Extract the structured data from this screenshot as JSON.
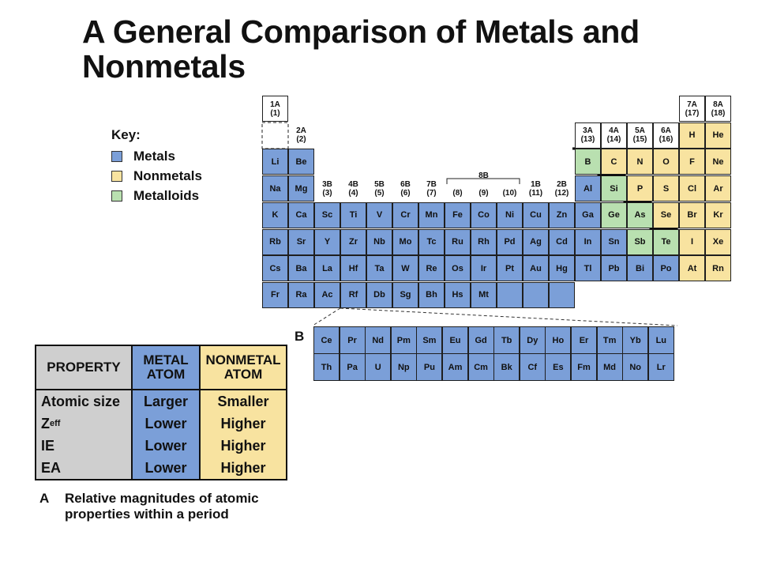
{
  "title": "A General Comparison of Metals and Nonmetals",
  "colors": {
    "metal": "#7b9fd8",
    "nonmetal": "#f8e3a0",
    "metalloid": "#b9e0b0",
    "gray": "#cfcfcf"
  },
  "key": {
    "title": "Key:",
    "items": [
      {
        "label": "Metals",
        "type": "metal"
      },
      {
        "label": "Nonmetals",
        "type": "nonmetal"
      },
      {
        "label": "Metalloids",
        "type": "metalloid"
      }
    ]
  },
  "group_labels": [
    {
      "text": "1A\n(1)",
      "col": 1,
      "row": 0
    },
    {
      "text": "2A\n(2)",
      "col": 2,
      "row": 1,
      "noborder": true
    },
    {
      "text": "3A\n(13)",
      "col": 13,
      "row": 1
    },
    {
      "text": "4A\n(14)",
      "col": 14,
      "row": 1
    },
    {
      "text": "5A\n(15)",
      "col": 15,
      "row": 1
    },
    {
      "text": "6A\n(16)",
      "col": 16,
      "row": 1
    },
    {
      "text": "7A\n(17)",
      "col": 17,
      "row": 0
    },
    {
      "text": "8A\n(18)",
      "col": 18,
      "row": 0
    },
    {
      "text": "3B\n(3)",
      "col": 3,
      "row": 3,
      "noborder": true
    },
    {
      "text": "4B\n(4)",
      "col": 4,
      "row": 3,
      "noborder": true
    },
    {
      "text": "5B\n(5)",
      "col": 5,
      "row": 3,
      "noborder": true
    },
    {
      "text": "6B\n(6)",
      "col": 6,
      "row": 3,
      "noborder": true
    },
    {
      "text": "7B\n(7)",
      "col": 7,
      "row": 3,
      "noborder": true
    },
    {
      "text": "8B",
      "col": 9,
      "row": 3,
      "noborder": true,
      "top": true
    },
    {
      "text": "(8)",
      "col": 8,
      "row": 3,
      "noborder": true,
      "bottom": true
    },
    {
      "text": "(9)",
      "col": 9,
      "row": 3,
      "noborder": true,
      "bottom": true
    },
    {
      "text": "(10)",
      "col": 10,
      "row": 3,
      "noborder": true,
      "bottom": true
    },
    {
      "text": "1B\n(11)",
      "col": 11,
      "row": 3,
      "noborder": true
    },
    {
      "text": "2B\n(12)",
      "col": 12,
      "row": 3,
      "noborder": true
    }
  ],
  "elements": [
    {
      "s": "Li",
      "c": 1,
      "r": 2,
      "t": "metal"
    },
    {
      "s": "Be",
      "c": 2,
      "r": 2,
      "t": "metal"
    },
    {
      "s": "B",
      "c": 13,
      "r": 2,
      "t": "metalloid"
    },
    {
      "s": "C",
      "c": 14,
      "r": 2,
      "t": "nonmetal"
    },
    {
      "s": "N",
      "c": 15,
      "r": 2,
      "t": "nonmetal"
    },
    {
      "s": "O",
      "c": 16,
      "r": 2,
      "t": "nonmetal"
    },
    {
      "s": "F",
      "c": 17,
      "r": 2,
      "t": "nonmetal"
    },
    {
      "s": "Ne",
      "c": 18,
      "r": 2,
      "t": "nonmetal"
    },
    {
      "s": "H",
      "c": 17,
      "r": 1,
      "t": "nonmetal"
    },
    {
      "s": "He",
      "c": 18,
      "r": 1,
      "t": "nonmetal"
    },
    {
      "s": "Na",
      "c": 1,
      "r": 3,
      "t": "metal"
    },
    {
      "s": "Mg",
      "c": 2,
      "r": 3,
      "t": "metal"
    },
    {
      "s": "Al",
      "c": 13,
      "r": 3,
      "t": "metal"
    },
    {
      "s": "Si",
      "c": 14,
      "r": 3,
      "t": "metalloid"
    },
    {
      "s": "P",
      "c": 15,
      "r": 3,
      "t": "nonmetal"
    },
    {
      "s": "S",
      "c": 16,
      "r": 3,
      "t": "nonmetal"
    },
    {
      "s": "Cl",
      "c": 17,
      "r": 3,
      "t": "nonmetal"
    },
    {
      "s": "Ar",
      "c": 18,
      "r": 3,
      "t": "nonmetal"
    },
    {
      "s": "K",
      "c": 1,
      "r": 4,
      "t": "metal"
    },
    {
      "s": "Ca",
      "c": 2,
      "r": 4,
      "t": "metal"
    },
    {
      "s": "Sc",
      "c": 3,
      "r": 4,
      "t": "metal"
    },
    {
      "s": "Ti",
      "c": 4,
      "r": 4,
      "t": "metal"
    },
    {
      "s": "V",
      "c": 5,
      "r": 4,
      "t": "metal"
    },
    {
      "s": "Cr",
      "c": 6,
      "r": 4,
      "t": "metal"
    },
    {
      "s": "Mn",
      "c": 7,
      "r": 4,
      "t": "metal"
    },
    {
      "s": "Fe",
      "c": 8,
      "r": 4,
      "t": "metal"
    },
    {
      "s": "Co",
      "c": 9,
      "r": 4,
      "t": "metal"
    },
    {
      "s": "Ni",
      "c": 10,
      "r": 4,
      "t": "metal"
    },
    {
      "s": "Cu",
      "c": 11,
      "r": 4,
      "t": "metal"
    },
    {
      "s": "Zn",
      "c": 12,
      "r": 4,
      "t": "metal"
    },
    {
      "s": "Ga",
      "c": 13,
      "r": 4,
      "t": "metal"
    },
    {
      "s": "Ge",
      "c": 14,
      "r": 4,
      "t": "metalloid"
    },
    {
      "s": "As",
      "c": 15,
      "r": 4,
      "t": "metalloid"
    },
    {
      "s": "Se",
      "c": 16,
      "r": 4,
      "t": "nonmetal"
    },
    {
      "s": "Br",
      "c": 17,
      "r": 4,
      "t": "nonmetal"
    },
    {
      "s": "Kr",
      "c": 18,
      "r": 4,
      "t": "nonmetal"
    },
    {
      "s": "Rb",
      "c": 1,
      "r": 5,
      "t": "metal"
    },
    {
      "s": "Sr",
      "c": 2,
      "r": 5,
      "t": "metal"
    },
    {
      "s": "Y",
      "c": 3,
      "r": 5,
      "t": "metal"
    },
    {
      "s": "Zr",
      "c": 4,
      "r": 5,
      "t": "metal"
    },
    {
      "s": "Nb",
      "c": 5,
      "r": 5,
      "t": "metal"
    },
    {
      "s": "Mo",
      "c": 6,
      "r": 5,
      "t": "metal"
    },
    {
      "s": "Tc",
      "c": 7,
      "r": 5,
      "t": "metal"
    },
    {
      "s": "Ru",
      "c": 8,
      "r": 5,
      "t": "metal"
    },
    {
      "s": "Rh",
      "c": 9,
      "r": 5,
      "t": "metal"
    },
    {
      "s": "Pd",
      "c": 10,
      "r": 5,
      "t": "metal"
    },
    {
      "s": "Ag",
      "c": 11,
      "r": 5,
      "t": "metal"
    },
    {
      "s": "Cd",
      "c": 12,
      "r": 5,
      "t": "metal"
    },
    {
      "s": "In",
      "c": 13,
      "r": 5,
      "t": "metal"
    },
    {
      "s": "Sn",
      "c": 14,
      "r": 5,
      "t": "metal"
    },
    {
      "s": "Sb",
      "c": 15,
      "r": 5,
      "t": "metalloid"
    },
    {
      "s": "Te",
      "c": 16,
      "r": 5,
      "t": "metalloid"
    },
    {
      "s": "I",
      "c": 17,
      "r": 5,
      "t": "nonmetal"
    },
    {
      "s": "Xe",
      "c": 18,
      "r": 5,
      "t": "nonmetal"
    },
    {
      "s": "Cs",
      "c": 1,
      "r": 6,
      "t": "metal"
    },
    {
      "s": "Ba",
      "c": 2,
      "r": 6,
      "t": "metal"
    },
    {
      "s": "La",
      "c": 3,
      "r": 6,
      "t": "metal"
    },
    {
      "s": "Hf",
      "c": 4,
      "r": 6,
      "t": "metal"
    },
    {
      "s": "Ta",
      "c": 5,
      "r": 6,
      "t": "metal"
    },
    {
      "s": "W",
      "c": 6,
      "r": 6,
      "t": "metal"
    },
    {
      "s": "Re",
      "c": 7,
      "r": 6,
      "t": "metal"
    },
    {
      "s": "Os",
      "c": 8,
      "r": 6,
      "t": "metal"
    },
    {
      "s": "Ir",
      "c": 9,
      "r": 6,
      "t": "metal"
    },
    {
      "s": "Pt",
      "c": 10,
      "r": 6,
      "t": "metal"
    },
    {
      "s": "Au",
      "c": 11,
      "r": 6,
      "t": "metal"
    },
    {
      "s": "Hg",
      "c": 12,
      "r": 6,
      "t": "metal"
    },
    {
      "s": "Tl",
      "c": 13,
      "r": 6,
      "t": "metal"
    },
    {
      "s": "Pb",
      "c": 14,
      "r": 6,
      "t": "metal"
    },
    {
      "s": "Bi",
      "c": 15,
      "r": 6,
      "t": "metal"
    },
    {
      "s": "Po",
      "c": 16,
      "r": 6,
      "t": "metal"
    },
    {
      "s": "At",
      "c": 17,
      "r": 6,
      "t": "nonmetal"
    },
    {
      "s": "Rn",
      "c": 18,
      "r": 6,
      "t": "nonmetal"
    },
    {
      "s": "Fr",
      "c": 1,
      "r": 7,
      "t": "metal"
    },
    {
      "s": "Ra",
      "c": 2,
      "r": 7,
      "t": "metal"
    },
    {
      "s": "Ac",
      "c": 3,
      "r": 7,
      "t": "metal"
    },
    {
      "s": "Rf",
      "c": 4,
      "r": 7,
      "t": "metal"
    },
    {
      "s": "Db",
      "c": 5,
      "r": 7,
      "t": "metal"
    },
    {
      "s": "Sg",
      "c": 6,
      "r": 7,
      "t": "metal"
    },
    {
      "s": "Bh",
      "c": 7,
      "r": 7,
      "t": "metal"
    },
    {
      "s": "Hs",
      "c": 8,
      "r": 7,
      "t": "metal"
    },
    {
      "s": "Mt",
      "c": 9,
      "r": 7,
      "t": "metal"
    },
    {
      "s": "",
      "c": 10,
      "r": 7,
      "t": "metal"
    },
    {
      "s": "",
      "c": 11,
      "r": 7,
      "t": "metal"
    },
    {
      "s": "",
      "c": 12,
      "r": 7,
      "t": "metal"
    }
  ],
  "lanthanides": [
    "Ce",
    "Pr",
    "Nd",
    "Pm",
    "Sm",
    "Eu",
    "Gd",
    "Tb",
    "Dy",
    "Ho",
    "Er",
    "Tm",
    "Yb",
    "Lu"
  ],
  "actinides": [
    "Th",
    "Pa",
    "U",
    "Np",
    "Pu",
    "Am",
    "Cm",
    "Bk",
    "Cf",
    "Es",
    "Fm",
    "Md",
    "No",
    "Lr"
  ],
  "panel_b_label": "B",
  "property_table": {
    "headers": [
      "PROPERTY",
      "METAL\nATOM",
      "NONMETAL\nATOM"
    ],
    "rows": [
      {
        "property": "Atomic size",
        "metal": "Larger",
        "nonmetal": "Smaller"
      },
      {
        "property": "Z",
        "property_sub": "eff",
        "metal": "Lower",
        "nonmetal": "Higher"
      },
      {
        "property": "IE",
        "metal": "Lower",
        "nonmetal": "Higher"
      },
      {
        "property": "EA",
        "metal": "Lower",
        "nonmetal": "Higher"
      }
    ]
  },
  "caption_a": {
    "letter": "A",
    "text": "Relative magnitudes of atomic properties within a period"
  }
}
